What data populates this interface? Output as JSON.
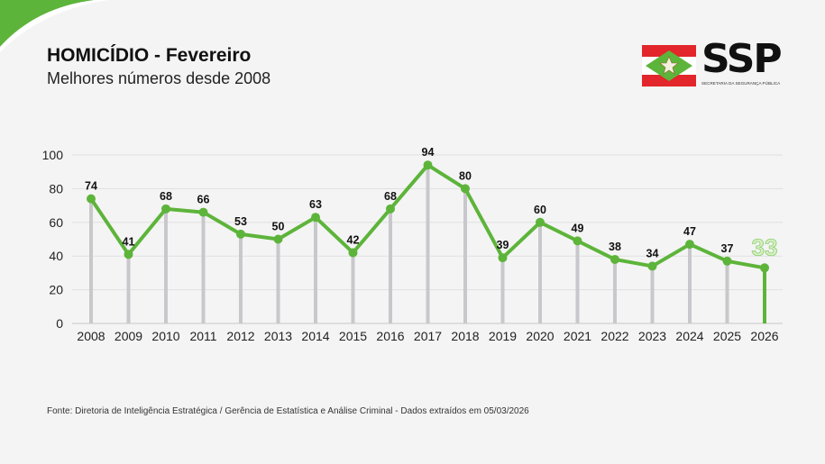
{
  "header": {
    "title": "HOMICÍDIO - Fevereiro",
    "subtitle": "Melhores números desde 2008"
  },
  "logo": {
    "text": "SSP",
    "subtext": "SECRETARIA DA SEGURANÇA PÚBLICA",
    "colors": {
      "red": "#e2262b",
      "green": "#5db43a"
    }
  },
  "footer": {
    "source": "Fonte: Diretoria de Inteligência Estratégica / Gerência de Estatística e Análise Criminal - Dados extraídos em 05/03/2026"
  },
  "chart_data": {
    "type": "line",
    "title": "HOMICÍDIO - Fevereiro",
    "subtitle": "Melhores números desde 2008",
    "categories": [
      "2008",
      "2009",
      "2010",
      "2011",
      "2012",
      "2013",
      "2014",
      "2015",
      "2016",
      "2017",
      "2018",
      "2019",
      "2020",
      "2021",
      "2022",
      "2023",
      "2024",
      "2025",
      "2026"
    ],
    "values": [
      74,
      41,
      68,
      66,
      53,
      50,
      63,
      42,
      68,
      94,
      80,
      39,
      60,
      49,
      38,
      34,
      47,
      37,
      33
    ],
    "ylim": [
      0,
      100
    ],
    "yticks": [
      0,
      20,
      40,
      60,
      80,
      100
    ],
    "grid": true,
    "highlight_last": true,
    "colors": {
      "line": "#5db43a",
      "stem": "#c8c8cc",
      "highlight_label": "#d4efc4"
    }
  }
}
